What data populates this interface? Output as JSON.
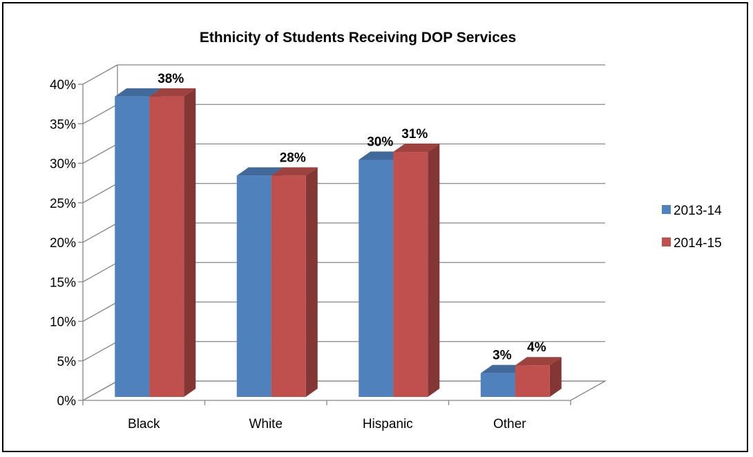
{
  "chart_data": {
    "type": "bar",
    "title": "Ethnicity of Students Receiving DOP Services",
    "categories": [
      "Black",
      "White",
      "Hispanic",
      "Other"
    ],
    "series": [
      {
        "name": "2013-14",
        "values": [
          38,
          28,
          30,
          3
        ],
        "labels": [
          "",
          "",
          "30%",
          "3%"
        ],
        "color": "#4F81BD"
      },
      {
        "name": "2014-15",
        "values": [
          38,
          28,
          31,
          4
        ],
        "labels": [
          "38%",
          "28%",
          "31%",
          "4%"
        ],
        "color": "#C0504D"
      }
    ],
    "yticks": [
      "0%",
      "5%",
      "10%",
      "15%",
      "20%",
      "25%",
      "30%",
      "35%",
      "40%"
    ],
    "ylim": [
      0,
      40
    ],
    "legend_position": "right",
    "grid": true
  }
}
